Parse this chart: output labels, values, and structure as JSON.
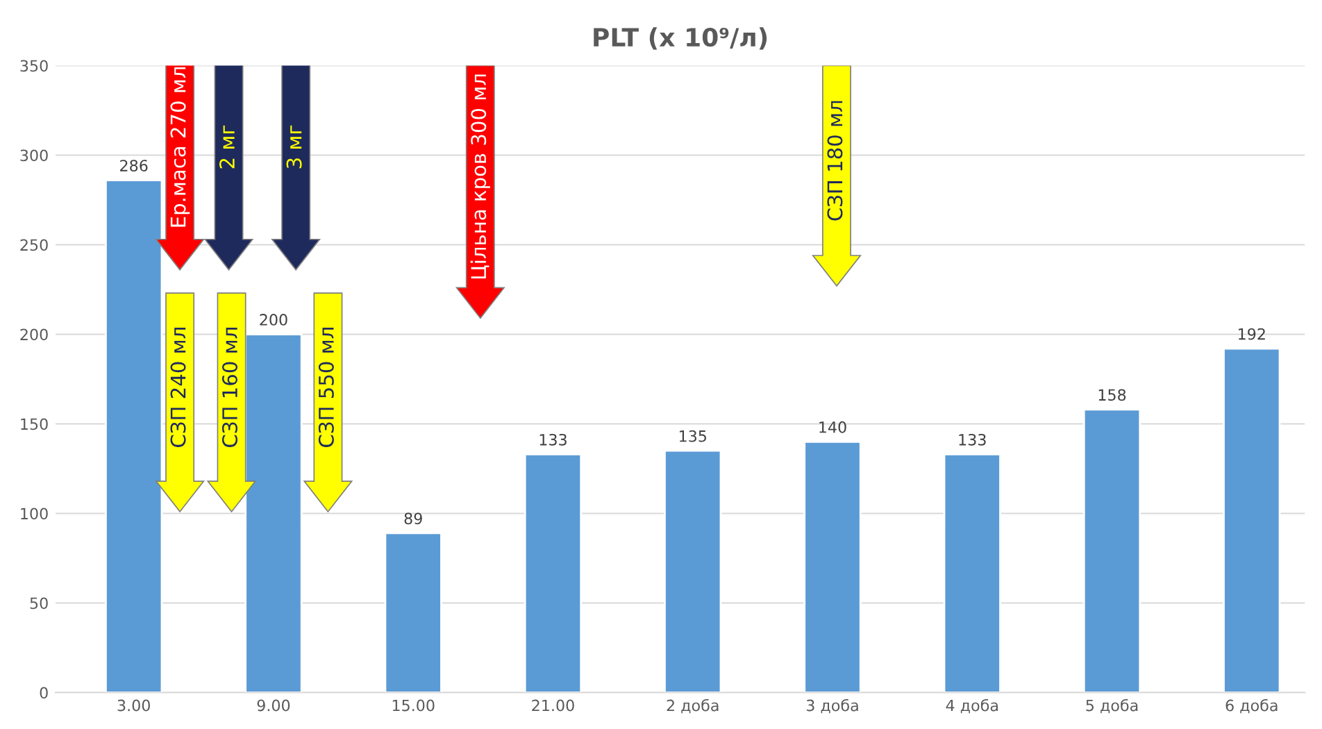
{
  "chart_data": {
    "type": "bar",
    "title": "PLT (x 10⁹/л)",
    "categories": [
      "3.00",
      "9.00",
      "15.00",
      "21.00",
      "2 доба",
      "3 доба",
      "4 доба",
      "5 доба",
      "6 доба"
    ],
    "values": [
      286,
      200,
      89,
      133,
      135,
      140,
      133,
      158,
      192
    ],
    "color": "#5b9bd5",
    "ylim": [
      0,
      350
    ],
    "yticks": [
      0,
      50,
      100,
      150,
      200,
      250,
      300,
      350
    ],
    "grid": "y",
    "data_labels": true,
    "annotations": [
      "Ер.маса 270 мл",
      "2 мг",
      "3 мг",
      "СЗП 240 мл",
      "СЗП 160 мл",
      "СЗП 550 мл",
      "Цільна кров 300 мл",
      "СЗП 180 мл"
    ]
  }
}
